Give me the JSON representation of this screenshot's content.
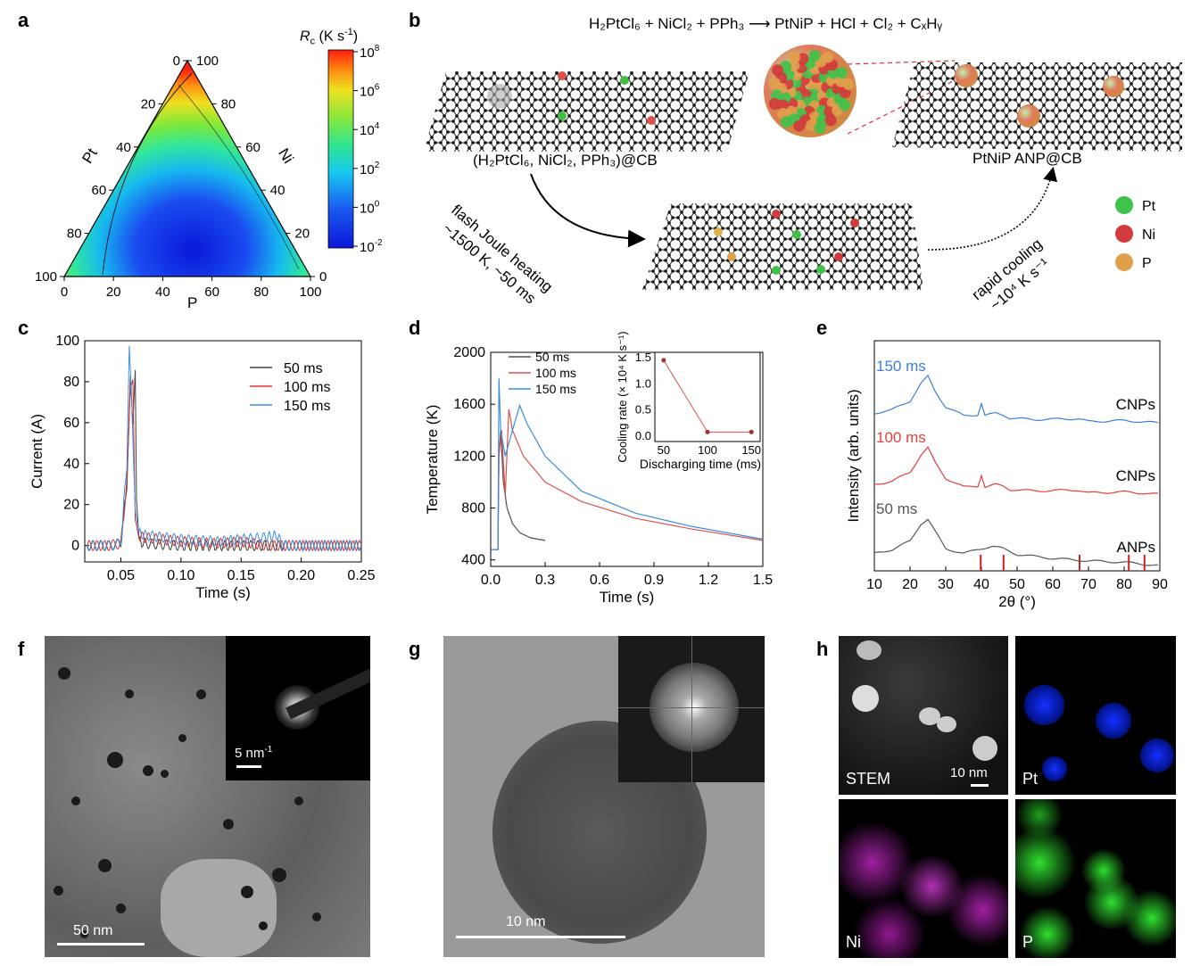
{
  "panels": {
    "a": "a",
    "b": "b",
    "c": "c",
    "d": "d",
    "e": "e",
    "f": "f",
    "g": "g",
    "h": "h"
  },
  "ternary": {
    "axis_left": "Pt",
    "axis_right": "Ni",
    "axis_bottom": "P",
    "ticks": [
      "0",
      "20",
      "40",
      "60",
      "80",
      "100"
    ],
    "colorbar_title": "R",
    "colorbar_sub": "c",
    "colorbar_unit": " (K s",
    "colorbar_unit_exp": "-1",
    "colorbar_unit_end": ")",
    "colorbar_ticks": [
      {
        "base": "10",
        "exp": "8"
      },
      {
        "base": "10",
        "exp": "6"
      },
      {
        "base": "10",
        "exp": "4"
      },
      {
        "base": "10",
        "exp": "2"
      },
      {
        "base": "10",
        "exp": "0"
      },
      {
        "base": "10",
        "exp": "-2"
      }
    ]
  },
  "schematic": {
    "reaction": "H₂PtCl₆ + NiCl₂ + PPh₃ ⟶ PtNiP + HCl + Cl₂ + CₓHᵧ",
    "precursor_label": "(H₂PtCl₆, NiCl₂, PPh₃)@CB",
    "product_label": "PtNiP ANP@CB",
    "heating_line1": "flash Joule heating",
    "heating_line2": "~1500 K, ~50 ms",
    "cooling_line1": "rapid cooling",
    "cooling_line2": "~10⁴ K s⁻¹",
    "legend": [
      {
        "label": "Pt",
        "color": "#3fc24a"
      },
      {
        "label": "Ni",
        "color": "#d23b3b"
      },
      {
        "label": "P",
        "color": "#e0a04a"
      }
    ]
  },
  "chart_data": [
    {
      "panel": "c",
      "type": "line",
      "xlabel": "Time (s)",
      "ylabel": "Current (A)",
      "xlim": [
        0.02,
        0.25
      ],
      "ylim": [
        -8,
        100
      ],
      "xticks": [
        "0.05",
        "0.10",
        "0.15",
        "0.20",
        "0.25"
      ],
      "yticks": [
        "0",
        "20",
        "40",
        "60",
        "80",
        "100"
      ],
      "legend_placement": "top-right",
      "series": [
        {
          "name": "50 ms",
          "color": "#404040",
          "x": [
            0.022,
            0.04,
            0.05,
            0.055,
            0.058,
            0.06,
            0.062,
            0.063,
            0.065,
            0.07,
            0.1,
            0.15,
            0.2,
            0.25
          ],
          "y": [
            0,
            0,
            1,
            30,
            82,
            60,
            88,
            20,
            2,
            1,
            0,
            0,
            0,
            0
          ]
        },
        {
          "name": "100 ms",
          "color": "#e03030",
          "x": [
            0.022,
            0.04,
            0.05,
            0.055,
            0.058,
            0.06,
            0.062,
            0.065,
            0.07,
            0.1,
            0.13,
            0.15,
            0.17,
            0.2,
            0.25
          ],
          "y": [
            0,
            0,
            1,
            30,
            78,
            80,
            10,
            5,
            4,
            2,
            1,
            2,
            0,
            0,
            0
          ]
        },
        {
          "name": "150 ms",
          "color": "#3b8ede",
          "x": [
            0.022,
            0.04,
            0.05,
            0.055,
            0.057,
            0.059,
            0.062,
            0.065,
            0.07,
            0.1,
            0.13,
            0.15,
            0.17,
            0.18,
            0.185,
            0.2,
            0.25
          ],
          "y": [
            0,
            0,
            1,
            40,
            99,
            70,
            20,
            6,
            5,
            3,
            2,
            3,
            4,
            5,
            0,
            0,
            0
          ]
        }
      ]
    },
    {
      "panel": "d",
      "type": "line",
      "xlabel": "Time (s)",
      "ylabel": "Temperature (K)",
      "xlim": [
        0,
        1.5
      ],
      "ylim": [
        350,
        2000
      ],
      "xticks": [
        "0.0",
        "0.3",
        "0.6",
        "0.9",
        "1.2",
        "1.5"
      ],
      "yticks": [
        "400",
        "800",
        "1200",
        "1600",
        "2000"
      ],
      "legend_placement": "top-left",
      "series": [
        {
          "name": "50 ms",
          "color": "#505050",
          "x": [
            0.0,
            0.04,
            0.045,
            0.055,
            0.07,
            0.09,
            0.12,
            0.16,
            0.22,
            0.3
          ],
          "y": [
            480,
            480,
            1200,
            1400,
            1000,
            800,
            680,
            610,
            570,
            550
          ]
        },
        {
          "name": "100 ms",
          "color": "#e05050",
          "x": [
            0.0,
            0.04,
            0.045,
            0.06,
            0.08,
            0.1,
            0.12,
            0.18,
            0.3,
            0.5,
            0.8,
            1.1,
            1.5
          ],
          "y": [
            480,
            480,
            1200,
            1400,
            900,
            1560,
            1400,
            1200,
            1000,
            850,
            720,
            640,
            550
          ]
        },
        {
          "name": "150 ms",
          "color": "#3b8ede",
          "x": [
            0.0,
            0.04,
            0.045,
            0.055,
            0.08,
            0.12,
            0.16,
            0.2,
            0.3,
            0.5,
            0.8,
            1.1,
            1.5
          ],
          "y": [
            480,
            480,
            1800,
            1400,
            1200,
            1400,
            1590,
            1450,
            1200,
            930,
            760,
            660,
            560
          ]
        }
      ],
      "inset": {
        "xlabel": "Discharging time (ms)",
        "ylabel": "Cooling rate (× 10⁴ K s⁻¹)",
        "xlim": [
          40,
          160
        ],
        "ylim": [
          -0.1,
          1.6
        ],
        "xticks": [
          "50",
          "100",
          "150"
        ],
        "yticks": [
          "0.0",
          "0.5",
          "1.0",
          "1.5"
        ],
        "x": [
          50,
          100,
          150
        ],
        "y": [
          1.45,
          0.08,
          0.08
        ]
      }
    },
    {
      "panel": "e",
      "type": "line",
      "xlabel": "2θ (°)",
      "ylabel": "Intensity (arb. units)",
      "xlim": [
        10,
        90
      ],
      "xticks": [
        "10",
        "20",
        "30",
        "40",
        "50",
        "60",
        "70",
        "80",
        "90"
      ],
      "ref_peaks": [
        39.8,
        46.2,
        67.5,
        81.3,
        85.7
      ],
      "series": [
        {
          "name": "150 ms",
          "color": "#3b7fd6",
          "annotation": "CNPs",
          "x": [
            10,
            15,
            20,
            23,
            25,
            27,
            30,
            35,
            39,
            40,
            41,
            44,
            46,
            48,
            55,
            67,
            70,
            80,
            90
          ],
          "y": [
            0.25,
            0.32,
            0.5,
            0.85,
            1.0,
            0.7,
            0.38,
            0.2,
            0.22,
            0.45,
            0.2,
            0.25,
            0.22,
            0.15,
            0.12,
            0.14,
            0.08,
            0.1,
            0.05
          ]
        },
        {
          "name": "100 ms",
          "color": "#e04040",
          "annotation": "CNPs",
          "x": [
            10,
            15,
            20,
            23,
            25,
            27,
            30,
            35,
            39,
            40,
            41,
            44,
            46,
            48,
            55,
            67,
            70,
            80,
            90
          ],
          "y": [
            0.25,
            0.32,
            0.5,
            0.85,
            1.0,
            0.7,
            0.38,
            0.2,
            0.22,
            0.45,
            0.2,
            0.25,
            0.22,
            0.15,
            0.12,
            0.14,
            0.08,
            0.1,
            0.05
          ]
        },
        {
          "name": "50 ms",
          "color": "#555555",
          "annotation": "ANPs",
          "x": [
            10,
            15,
            20,
            23,
            25,
            27,
            30,
            35,
            40,
            43,
            46,
            50,
            60,
            70,
            80,
            90
          ],
          "y": [
            0.3,
            0.38,
            0.55,
            0.9,
            1.0,
            0.75,
            0.4,
            0.3,
            0.4,
            0.45,
            0.4,
            0.28,
            0.2,
            0.15,
            0.12,
            0.05
          ]
        }
      ]
    }
  ],
  "micrographs": {
    "f_scale": "50 nm",
    "f_inset_scale": "5 nm",
    "f_inset_scale_exp": "-1",
    "g_scale": "10 nm",
    "h_scale": "10 nm",
    "h_maps": [
      "STEM",
      "Pt",
      "Ni",
      "P"
    ]
  }
}
